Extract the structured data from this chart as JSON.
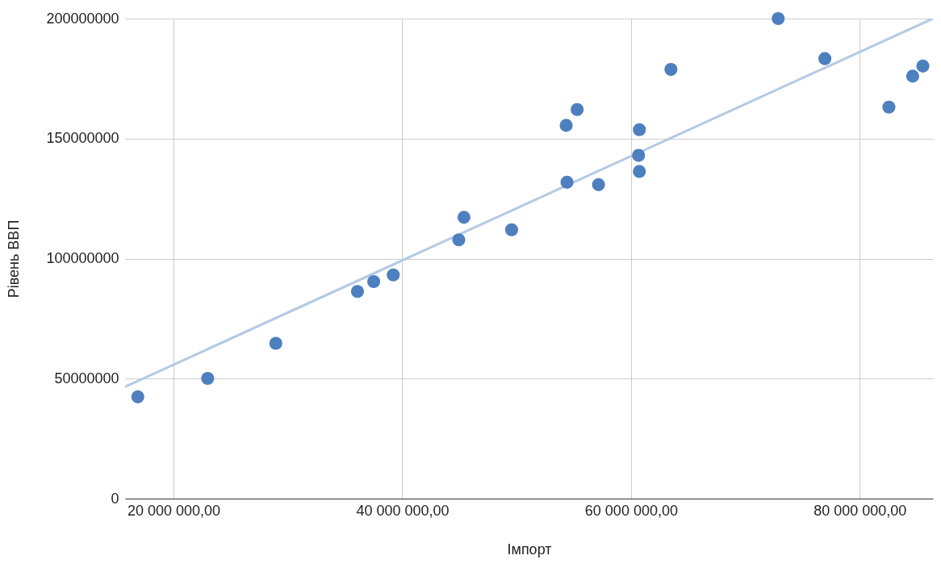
{
  "chart_data": {
    "type": "scatter",
    "xlabel": "Імпорт",
    "ylabel": "Рівень ВВП",
    "xlim": [
      15760000,
      86400000
    ],
    "ylim": [
      0,
      200000000
    ],
    "xticks": [
      {
        "value": 20000000,
        "label": "20 000 000,00"
      },
      {
        "value": 40000000,
        "label": "40 000 000,00"
      },
      {
        "value": 60000000,
        "label": "60 000 000,00"
      },
      {
        "value": 80000000,
        "label": "80 000 000,00"
      }
    ],
    "yticks": [
      0,
      50000000,
      100000000,
      150000000,
      200000000
    ],
    "grid": true,
    "series": [
      {
        "type": "line",
        "marker": "none",
        "color": "#b4c9e4",
        "x": [
          15760000,
          86400000
        ],
        "values": [
          46600000,
          200000000
        ]
      },
      {
        "marker": "circle",
        "color": "#4e7fbf",
        "x": [
          16870000,
          22980000,
          28940000,
          36080000,
          37500000,
          39210000,
          44940000,
          45390000,
          49560000,
          54330000,
          54400000,
          55290000,
          57160000,
          60660000,
          60730000,
          60730000,
          63490000,
          72870000,
          76950000,
          82550000,
          84630000,
          85520000
        ],
        "values": [
          42400000,
          50100000,
          64700000,
          86300000,
          90400000,
          93200000,
          107800000,
          117200000,
          112000000,
          155500000,
          131800000,
          162100000,
          130800000,
          143000000,
          153700000,
          136300000,
          178800000,
          200000000,
          183300000,
          163100000,
          176000000,
          180200000
        ]
      }
    ]
  }
}
